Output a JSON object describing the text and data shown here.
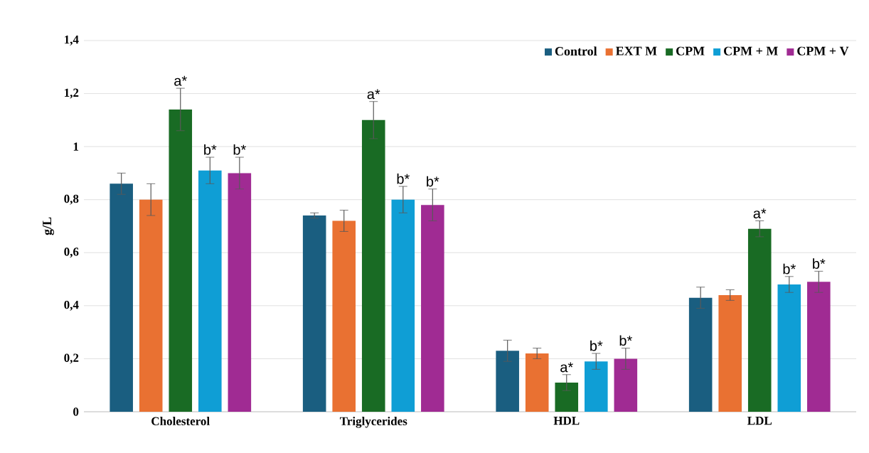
{
  "chart_data": {
    "type": "bar",
    "ylabel": "g/L",
    "categories": [
      "Cholesterol",
      "Triglycerides",
      "HDL",
      "LDL"
    ],
    "series": [
      {
        "name": "Control",
        "color": "#1a5e80",
        "values": [
          0.86,
          0.74,
          0.23,
          0.43
        ],
        "errors": [
          0.04,
          0.01,
          0.04,
          0.04
        ]
      },
      {
        "name": "EXT M",
        "color": "#e97132",
        "values": [
          0.8,
          0.72,
          0.22,
          0.44
        ],
        "errors": [
          0.06,
          0.04,
          0.02,
          0.02
        ]
      },
      {
        "name": "CPM",
        "color": "#196b24",
        "values": [
          1.14,
          1.1,
          0.11,
          0.69
        ],
        "errors": [
          0.08,
          0.07,
          0.03,
          0.03
        ],
        "value_labels": [
          "a*",
          "a*",
          "a*",
          "a*"
        ]
      },
      {
        "name": "CPM + M",
        "color": "#0f9ed5",
        "values": [
          0.91,
          0.8,
          0.19,
          0.48
        ],
        "errors": [
          0.05,
          0.05,
          0.03,
          0.03
        ],
        "value_labels": [
          "b*",
          "b*",
          "b*",
          "b*"
        ]
      },
      {
        "name": "CPM + V",
        "color": "#a02b93",
        "values": [
          0.9,
          0.78,
          0.2,
          0.49
        ],
        "errors": [
          0.06,
          0.06,
          0.04,
          0.04
        ],
        "value_labels": [
          "b*",
          "b*",
          "b*",
          "b*"
        ]
      }
    ],
    "ylim": [
      0,
      1.4
    ],
    "yticks": [
      0,
      {
        "value": 0.2,
        "label": "0,2"
      },
      {
        "value": 0.4,
        "label": "0,4"
      },
      {
        "value": 0.6,
        "label": "0,6"
      },
      {
        "value": 0.8,
        "label": "0,8"
      },
      1,
      {
        "value": 1.2,
        "label": "1,2"
      },
      {
        "value": 1.4,
        "label": "1,4"
      }
    ],
    "grid": "y",
    "legend": "top right"
  }
}
